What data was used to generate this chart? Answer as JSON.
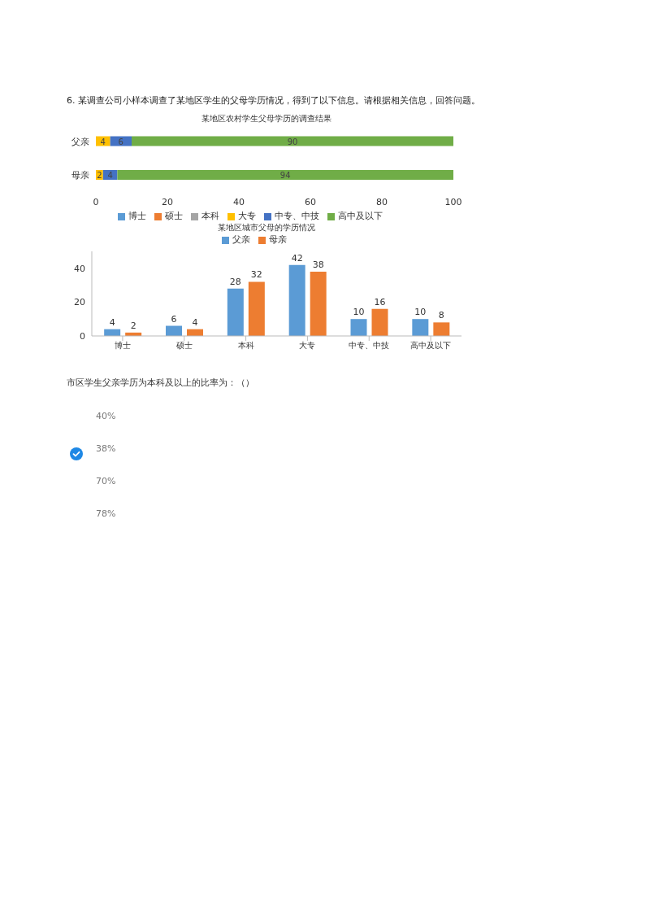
{
  "chart_data": [
    {
      "type": "bar",
      "orientation": "horizontal",
      "stacked": true,
      "title": "某地区农村学生父母学历的调查结果",
      "annotations": [
        "6. 某调查公司小样本调查了某地区学生的父母学历情况，得到了以下信息。请根据相关信息，回答问题。"
      ],
      "categories": [
        "父亲",
        "母亲"
      ],
      "series": [
        {
          "name": "博士",
          "color": "#5b9bd5",
          "values": [
            0,
            0
          ],
          "value_labels": [
            null,
            null
          ]
        },
        {
          "name": "硕士",
          "color": "#ed7d31",
          "values": [
            0,
            0
          ],
          "value_labels": [
            null,
            null
          ]
        },
        {
          "name": "本科",
          "color": "#a5a5a5",
          "values": [
            0,
            0
          ],
          "value_labels": [
            null,
            null
          ]
        },
        {
          "name": "大专",
          "color": "#ffc000",
          "values": [
            4,
            2
          ],
          "value_labels": [
            "4",
            "2"
          ]
        },
        {
          "name": "中专、中技",
          "color": "#4472c4",
          "values": [
            6,
            4
          ],
          "value_labels": [
            "6",
            "4"
          ]
        },
        {
          "name": "高中及以下",
          "color": "#70ad47",
          "values": [
            90,
            94
          ],
          "value_labels": [
            "90",
            "94"
          ]
        }
      ],
      "xlim": [
        0,
        100
      ],
      "xticks": [
        0,
        20,
        40,
        60,
        80,
        100
      ],
      "grid": false,
      "legend": "bottom"
    },
    {
      "type": "bar",
      "title": "某地区城市父母的学历情况",
      "categories": [
        "博士",
        "硕士",
        "本科",
        "大专",
        "中专、中技",
        "高中及以下"
      ],
      "series": [
        {
          "name": "父亲",
          "color": "#5b9bd5",
          "values": [
            4,
            6,
            28,
            42,
            10,
            10
          ]
        },
        {
          "name": "母亲",
          "color": "#ed7d31",
          "values": [
            2,
            4,
            32,
            38,
            16,
            8
          ]
        }
      ],
      "ylim": [
        0,
        50
      ],
      "yticks": [
        0,
        20,
        40
      ],
      "grid": false,
      "legend": "top",
      "data_labels": true,
      "annotations": [
        "市区学生父亲学历为本科及以上的比率为：（）",
        "40%",
        "38%",
        "70%",
        "78%"
      ]
    }
  ]
}
